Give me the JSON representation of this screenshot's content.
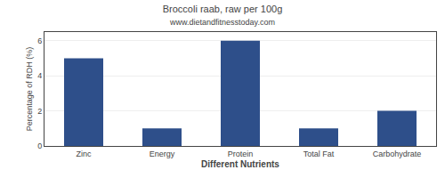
{
  "chart_data": {
    "type": "bar",
    "title": "Broccoli raab, raw per 100g",
    "subtitle": "www.dietandfitnesstoday.com",
    "xlabel": "Different Nutrients",
    "ylabel": "Percentage of RDH (%)",
    "categories": [
      "Zinc",
      "Energy",
      "Protein",
      "Total Fat",
      "Carbohydrate"
    ],
    "values": [
      5.0,
      1.0,
      6.0,
      1.0,
      2.0
    ],
    "color": "#2e4f8a",
    "ylim": [
      0,
      6.5
    ],
    "yticks": [
      0,
      2,
      4,
      6
    ],
    "grid": true
  }
}
